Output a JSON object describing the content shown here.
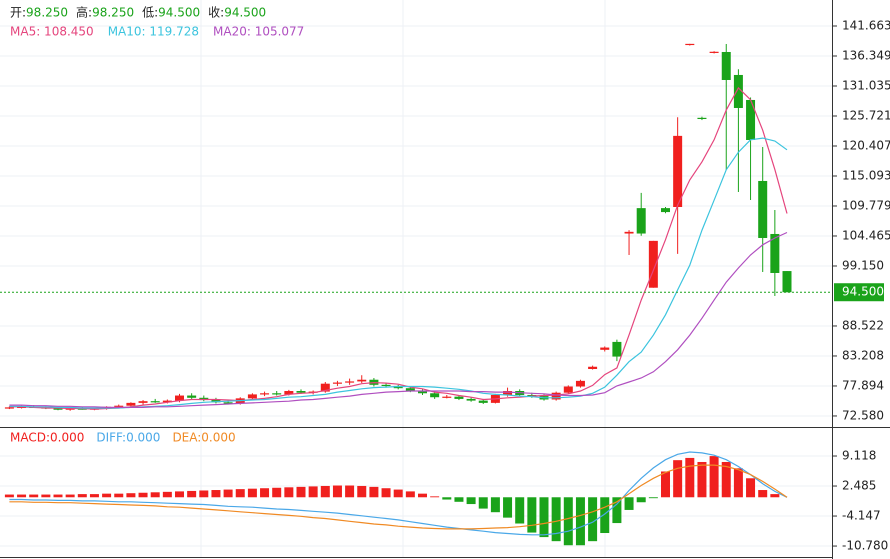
{
  "chart_data": [
    {
      "type": "candlestick",
      "info": [
        {
          "name": "开:",
          "label": "98.250"
        },
        {
          "name": "高:",
          "label": "98.250"
        },
        {
          "name": "低:",
          "label": "94.500"
        },
        {
          "name": "收:",
          "label": "94.500"
        }
      ],
      "info_color": "#1aa31a",
      "up_color": "#f0201e",
      "down_color": "#1aa31a",
      "open": [
        74.0,
        74.1,
        74.2,
        74.1,
        73.9,
        73.7,
        73.9,
        73.8,
        73.9,
        74.2,
        74.4,
        74.9,
        75.2,
        75.0,
        75.3,
        76.2,
        75.8,
        75.4,
        75.0,
        74.8,
        75.7,
        76.4,
        76.6,
        76.4,
        77.0,
        76.7,
        76.9,
        78.3,
        78.5,
        78.7,
        79.0,
        78.1,
        77.9,
        77.5,
        77.0,
        76.6,
        75.9,
        76.0,
        75.6,
        75.3,
        74.9,
        76.3,
        77.0,
        76.3,
        76.1,
        75.5,
        76.7,
        77.8,
        80.9,
        84.3,
        85.7,
        104.9,
        109.4,
        95.3,
        109.4,
        109.6,
        138.3,
        125.4,
        136.9,
        137.06,
        132.99,
        128.56,
        114.21,
        104.82,
        98.25
      ],
      "high": [
        74.3,
        74.4,
        74.5,
        74.3,
        74.1,
        74.0,
        74.2,
        74.0,
        74.3,
        74.6,
        75.0,
        75.4,
        75.6,
        75.5,
        76.5,
        76.6,
        76.2,
        75.8,
        75.3,
        75.9,
        76.6,
        76.9,
        77.0,
        77.2,
        77.3,
        77.1,
        78.6,
        78.8,
        79.2,
        79.8,
        79.3,
        78.5,
        78.1,
        77.8,
        77.3,
        76.9,
        76.3,
        76.2,
        75.9,
        75.6,
        76.5,
        77.6,
        77.3,
        76.7,
        76.4,
        76.9,
        78.0,
        79.0,
        81.5,
        84.9,
        86.1,
        105.5,
        112.1,
        103.6,
        109.6,
        125.5,
        138.5,
        125.6,
        137.2,
        138.48,
        134.0,
        129.0,
        120.23,
        109.07,
        98.25
      ],
      "low": [
        73.8,
        73.9,
        74.0,
        73.8,
        73.6,
        73.5,
        73.7,
        73.6,
        73.7,
        74.0,
        74.2,
        74.6,
        74.9,
        74.8,
        75.0,
        75.6,
        75.2,
        74.8,
        74.6,
        74.6,
        75.5,
        76.1,
        76.2,
        76.2,
        76.5,
        76.4,
        76.7,
        77.9,
        78.1,
        78.4,
        77.8,
        77.6,
        77.3,
        76.8,
        76.3,
        75.6,
        75.7,
        75.4,
        75.1,
        74.7,
        74.8,
        76.0,
        76.1,
        75.8,
        75.3,
        75.3,
        76.5,
        77.6,
        80.8,
        84.0,
        82.3,
        101.1,
        104.5,
        95.3,
        108.5,
        101.3,
        138.2,
        125.0,
        136.8,
        116.16,
        112.26,
        110.84,
        98.09,
        93.84,
        94.5
      ],
      "close": [
        74.1,
        74.2,
        74.1,
        73.9,
        73.7,
        73.9,
        73.8,
        73.9,
        74.2,
        74.4,
        74.9,
        75.2,
        75.0,
        75.3,
        76.2,
        75.8,
        75.4,
        75.0,
        74.8,
        75.7,
        76.4,
        76.6,
        76.4,
        77.0,
        76.7,
        76.9,
        78.3,
        78.5,
        78.7,
        79.0,
        78.1,
        77.9,
        77.5,
        77.0,
        76.6,
        75.9,
        76.0,
        75.6,
        75.3,
        74.9,
        76.3,
        77.0,
        76.3,
        76.1,
        75.5,
        76.7,
        77.8,
        78.8,
        81.3,
        84.7,
        83.1,
        105.2,
        104.9,
        103.6,
        108.7,
        122.2,
        138.5,
        125.2,
        137.1,
        132.1,
        127.14,
        121.47,
        104.11,
        97.91,
        94.5
      ],
      "series": [
        {
          "name": "MA5: 108.450",
          "color": "#e5457d",
          "values": [
            74.2,
            74.2,
            74.1,
            74.0,
            74.0,
            73.9,
            73.9,
            73.8,
            73.9,
            74.0,
            74.2,
            74.5,
            74.7,
            75.0,
            75.3,
            75.5,
            75.5,
            75.5,
            75.4,
            75.3,
            75.5,
            75.7,
            76.0,
            76.4,
            76.6,
            76.7,
            77.1,
            77.5,
            77.8,
            78.3,
            78.5,
            78.4,
            78.2,
            77.7,
            77.4,
            76.8,
            76.6,
            76.2,
            75.9,
            75.5,
            75.6,
            75.8,
            75.9,
            76.1,
            76.2,
            76.3,
            76.5,
            77.0,
            78.0,
            79.9,
            81.1,
            86.9,
            93.1,
            98.4,
            103.8,
            109.9,
            114.4,
            117.6,
            121.5,
            126.8,
            130.7,
            128.6,
            123.2,
            116.2,
            108.45
          ]
        },
        {
          "name": "MA10: 119.728",
          "color": "#3cc4de",
          "values": [
            74.3,
            74.3,
            74.2,
            74.2,
            74.1,
            74.1,
            74.0,
            74.0,
            74.0,
            74.0,
            74.1,
            74.2,
            74.3,
            74.4,
            74.6,
            74.8,
            75.0,
            75.1,
            75.2,
            75.3,
            75.4,
            75.5,
            75.7,
            75.9,
            76.0,
            76.2,
            76.4,
            76.8,
            77.1,
            77.4,
            77.6,
            77.7,
            77.8,
            77.8,
            77.8,
            77.7,
            77.5,
            77.3,
            77.0,
            76.6,
            76.4,
            76.3,
            76.1,
            76.0,
            75.8,
            75.8,
            75.9,
            76.1,
            76.6,
            77.7,
            79.8,
            82.2,
            83.9,
            86.9,
            90.5,
            94.9,
            99.3,
            105.5,
            110.8,
            116.2,
            119.3,
            121.5,
            121.8,
            121.3,
            119.728
          ]
        },
        {
          "name": "MA20: 105.077",
          "color": "#b04fc0",
          "values": [
            74.5,
            74.5,
            74.4,
            74.4,
            74.3,
            74.3,
            74.2,
            74.2,
            74.1,
            74.1,
            74.1,
            74.1,
            74.2,
            74.2,
            74.3,
            74.4,
            74.5,
            74.6,
            74.7,
            74.8,
            74.9,
            75.0,
            75.1,
            75.2,
            75.4,
            75.5,
            75.7,
            75.9,
            76.1,
            76.4,
            76.6,
            76.8,
            76.9,
            77.0,
            77.0,
            77.0,
            77.0,
            77.0,
            76.9,
            76.9,
            76.8,
            76.8,
            76.7,
            76.6,
            76.5,
            76.3,
            76.2,
            76.2,
            76.3,
            76.7,
            77.9,
            78.6,
            79.3,
            80.4,
            82.2,
            84.3,
            86.9,
            89.9,
            93.1,
            96.3,
            98.8,
            101.1,
            102.9,
            104.1,
            105.077
          ]
        }
      ],
      "ylim": [
        70.98,
        146.27
      ],
      "yticks": [
        141.663,
        136.349,
        131.035,
        125.721,
        120.407,
        115.093,
        109.779,
        104.465,
        {
          "value": 99.15,
          "label": "99.150"
        },
        88.522,
        83.208,
        77.894,
        {
          "value": 72.58,
          "label": "72.580"
        }
      ],
      "last_price": {
        "value": 94.5,
        "label": "94.500",
        "color": "#1aa31a"
      },
      "grid": true
    },
    {
      "type": "macd",
      "histogram": {
        "name": "MACD:0.000",
        "up_color": "#f0201e",
        "down_color": "#1aa31a",
        "values": [
          0.6,
          0.6,
          0.6,
          0.6,
          0.6,
          0.6,
          0.7,
          0.7,
          0.8,
          0.8,
          0.9,
          1.0,
          1.1,
          1.2,
          1.3,
          1.4,
          1.5,
          1.6,
          1.7,
          1.8,
          1.9,
          2.0,
          2.1,
          2.2,
          2.3,
          2.4,
          2.5,
          2.6,
          2.6,
          2.5,
          2.3,
          2.0,
          1.7,
          1.3,
          0.8,
          0.2,
          -0.5,
          -1.0,
          -1.5,
          -2.5,
          -3.3,
          -4.5,
          -5.8,
          -7.8,
          -8.8,
          -9.7,
          -10.6,
          -10.6,
          -9.7,
          -7.9,
          -5.7,
          -2.8,
          -1.1,
          -0.2,
          5.7,
          8.2,
          8.7,
          7.8,
          9.1,
          7.8,
          6.4,
          4.2,
          1.6,
          0.7,
          0
        ]
      },
      "series": [
        {
          "name": "DIFF:0.000",
          "color": "#4aa8e8",
          "values": [
            -0.5,
            -0.5,
            -0.6,
            -0.6,
            -0.7,
            -0.7,
            -0.8,
            -0.8,
            -0.9,
            -1.0,
            -1.0,
            -1.1,
            -1.2,
            -1.3,
            -1.4,
            -1.5,
            -1.6,
            -1.8,
            -2.0,
            -2.1,
            -2.2,
            -2.4,
            -2.6,
            -2.7,
            -2.9,
            -3.1,
            -3.3,
            -3.5,
            -3.8,
            -4.1,
            -4.4,
            -4.7,
            -5.0,
            -5.4,
            -5.8,
            -6.2,
            -6.6,
            -6.9,
            -7.2,
            -7.5,
            -7.8,
            -8.0,
            -8.2,
            -8.3,
            -8.3,
            -8.0,
            -7.5,
            -6.6,
            -5.5,
            -3.7,
            -1.5,
            1.5,
            4.2,
            6.5,
            8.3,
            9.5,
            10.0,
            9.8,
            9.3,
            8.3,
            6.8,
            5.0,
            3.0,
            1.3,
            0
          ]
        },
        {
          "name": "DEA:0.000",
          "color": "#f08a24",
          "values": [
            -1.0,
            -1.0,
            -1.1,
            -1.1,
            -1.2,
            -1.2,
            -1.3,
            -1.4,
            -1.5,
            -1.6,
            -1.7,
            -1.8,
            -1.9,
            -2.1,
            -2.2,
            -2.4,
            -2.6,
            -2.8,
            -3.0,
            -3.2,
            -3.4,
            -3.6,
            -3.8,
            -4.0,
            -4.2,
            -4.5,
            -4.7,
            -5.0,
            -5.3,
            -5.6,
            -5.9,
            -6.1,
            -6.4,
            -6.6,
            -6.8,
            -6.9,
            -7.0,
            -7.0,
            -7.0,
            -6.9,
            -6.8,
            -6.7,
            -6.5,
            -6.2,
            -5.8,
            -5.3,
            -4.7,
            -4.0,
            -3.2,
            -2.2,
            -1.0,
            0.8,
            2.6,
            4.2,
            5.5,
            6.4,
            6.9,
            7.1,
            7.1,
            6.8,
            6.1,
            5.0,
            3.5,
            1.8,
            0
          ]
        }
      ],
      "ylim": [
        -13.2,
        15.31
      ],
      "yticks": [
        9.118,
        2.485,
        -4.147,
        {
          "value": -10.78,
          "label": "-10.780"
        }
      ],
      "grid": true
    }
  ]
}
